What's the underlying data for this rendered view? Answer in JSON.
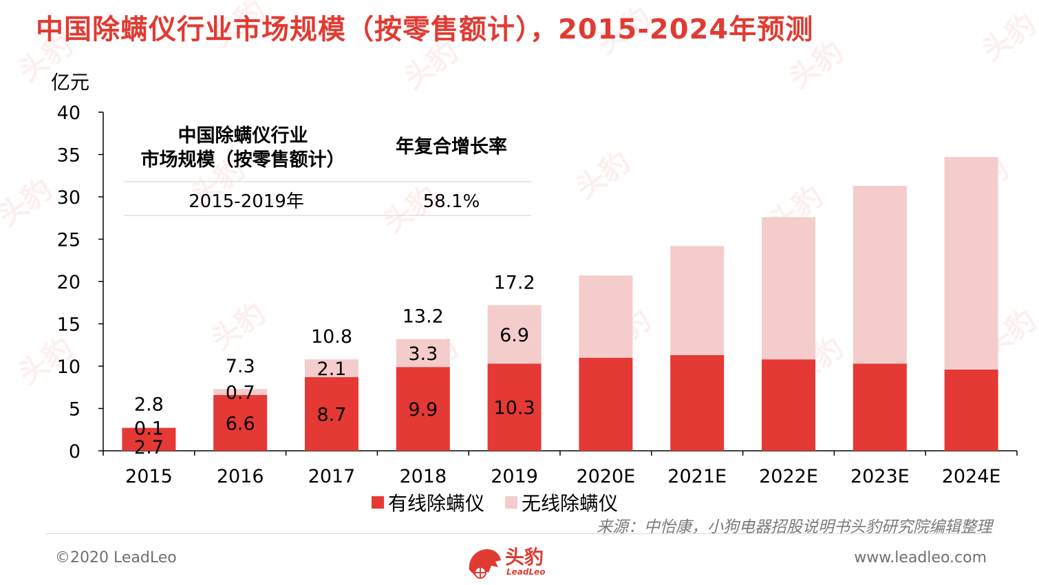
{
  "title": "中国除螨仪行业市场规模（按零售额计），2015-2024年预测",
  "unit_label": "亿元",
  "table": {
    "header_col1_line1": "中国除螨仪行业",
    "header_col1_line2": "市场规模（按零售额计）",
    "header_col2": "年复合增长率",
    "row_period": "2015-2019年",
    "row_cagr": "58.1%"
  },
  "legend": {
    "wired": "有线除螨仪",
    "wireless": "无线除螨仪"
  },
  "source": "来源：中怡康，小狗电器招股说明书头豹研究院编辑整理",
  "footer": {
    "copyright": "©2020 LeadLeo",
    "website": "www.leadleo.com",
    "logo_text": "头豹",
    "logo_sub": "LeadLeo"
  },
  "watermark_text": "头豹",
  "colors": {
    "wired": "#e53935",
    "wireless": "#f4cccc",
    "title": "#e03b33",
    "axis": "#000000"
  },
  "chart_data": {
    "type": "bar",
    "stacked": true,
    "categories": [
      "2015",
      "2016",
      "2017",
      "2018",
      "2019",
      "2020E",
      "2021E",
      "2022E",
      "2023E",
      "2024E"
    ],
    "series": [
      {
        "name": "有线除螨仪",
        "values": [
          2.7,
          6.6,
          8.7,
          9.9,
          10.3,
          11.0,
          11.3,
          10.8,
          10.3,
          9.6
        ]
      },
      {
        "name": "无线除螨仪",
        "values": [
          0.1,
          0.7,
          2.1,
          3.3,
          6.9,
          9.7,
          12.9,
          16.8,
          21.0,
          25.1
        ]
      }
    ],
    "totals": [
      2.8,
      7.3,
      10.8,
      13.2,
      17.2
    ],
    "labeled_count": 5,
    "ylabel": "亿元",
    "ylim": [
      0,
      40
    ],
    "yticks": [
      0,
      5,
      10,
      15,
      20,
      25,
      30,
      35,
      40
    ],
    "grid": false,
    "legend_position": "bottom"
  }
}
